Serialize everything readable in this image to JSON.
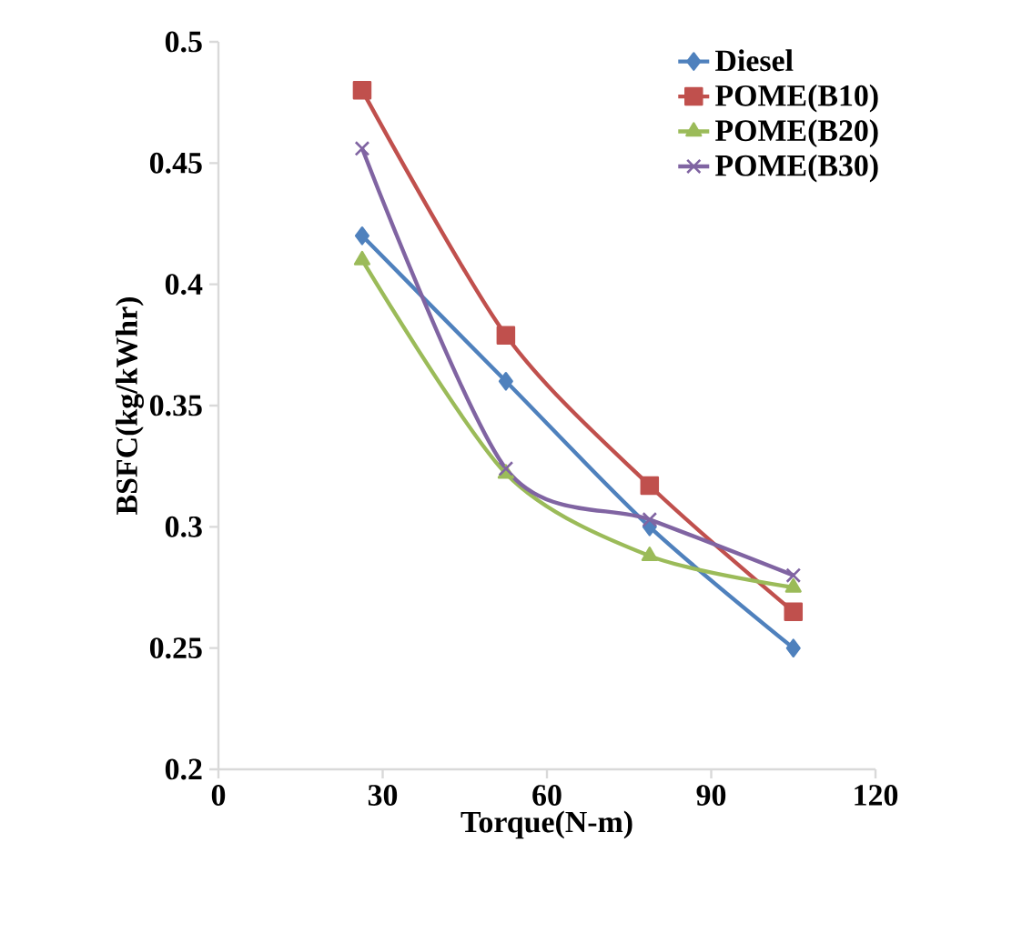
{
  "chart_data": {
    "type": "line",
    "xlabel": "Torque(N-m)",
    "ylabel": "BSFC(kg/kWhr)",
    "xlim": [
      0,
      120
    ],
    "xticks": [
      0,
      30,
      60,
      90,
      120
    ],
    "ylim": [
      0.2,
      0.5
    ],
    "yticks": [
      0.2,
      0.25,
      0.3,
      0.35,
      0.4,
      0.45,
      0.5
    ],
    "grid": false,
    "legend": "top right",
    "line_style": "solid",
    "series": [
      {
        "name": "Diesel",
        "color": "#4f81bd",
        "marker": "diamond",
        "x": [
          26.25,
          52.5,
          78.75,
          105
        ],
        "values": [
          0.42,
          0.36,
          0.3,
          0.25
        ]
      },
      {
        "name": "POME(B10)",
        "color": "#c0504d",
        "marker": "square",
        "x": [
          26.25,
          52.5,
          78.75,
          105
        ],
        "values": [
          0.48,
          0.379,
          0.317,
          0.265
        ]
      },
      {
        "name": "POME(B20)",
        "color": "#9bbb59",
        "marker": "triangle",
        "x": [
          26.25,
          52.5,
          78.75,
          105
        ],
        "values": [
          0.41,
          0.322,
          0.288,
          0.275
        ]
      },
      {
        "name": "POME(B30)",
        "color": "#8064a2",
        "marker": "cross",
        "x": [
          26.25,
          52.5,
          78.75,
          105
        ],
        "values": [
          0.456,
          0.324,
          0.303,
          0.28
        ]
      }
    ]
  }
}
